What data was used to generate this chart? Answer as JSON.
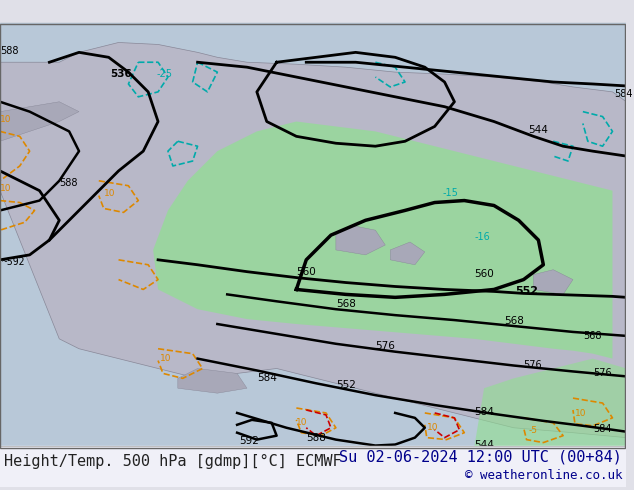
{
  "title_left": "Height/Temp. 500 hPa [gdmp][°C] ECMWF",
  "title_right": "Su 02-06-2024 12:00 UTC (00+84)",
  "copyright": "© weatheronline.co.uk",
  "bg_color": "#e8e8f0",
  "map_bg": "#d8d8e8",
  "land_color": "#c8c8d8",
  "text_color_left": "#222222",
  "text_color_right": "#00008b",
  "font_size_bottom": 11
}
